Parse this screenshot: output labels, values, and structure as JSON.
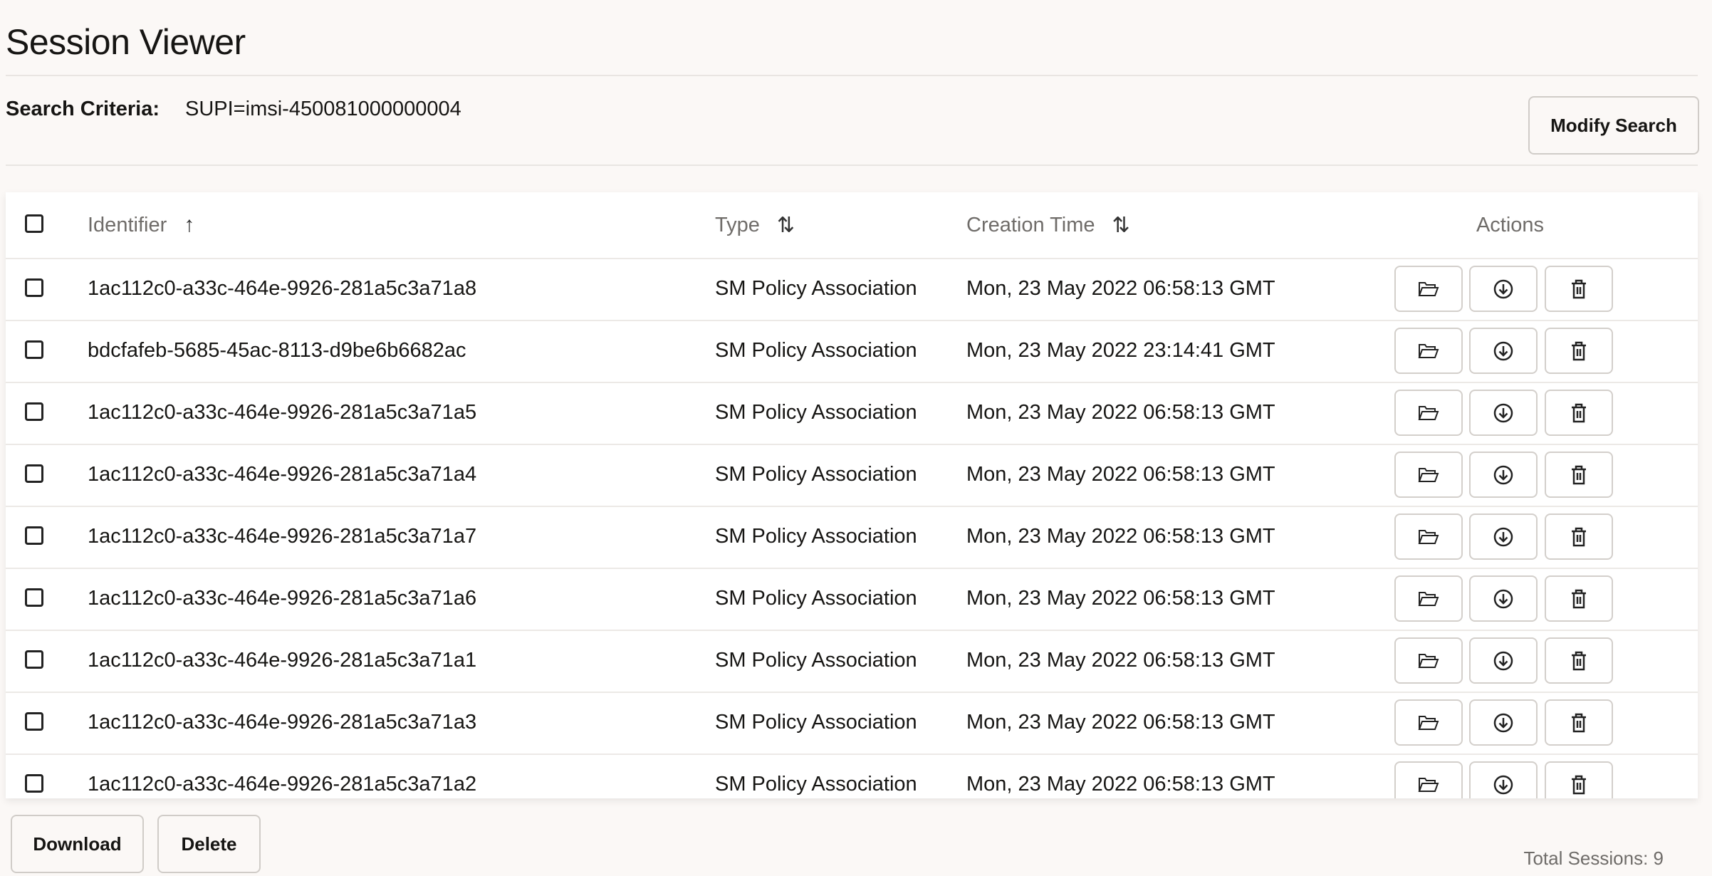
{
  "page": {
    "title": "Session Viewer"
  },
  "search": {
    "label": "Search Criteria:",
    "value": "SUPI=imsi-450081000000004",
    "modify_label": "Modify Search"
  },
  "table": {
    "columns": [
      {
        "label": "Identifier",
        "sort": "ascending",
        "sort_icon": "↑"
      },
      {
        "label": "Type",
        "sort": "unsorted",
        "sort_icon": "⇅"
      },
      {
        "label": "Creation Time",
        "sort": "unsorted",
        "sort_icon": "⇅"
      },
      {
        "label": "Actions"
      }
    ],
    "rows": [
      {
        "id": "1ac112c0-a33c-464e-9926-281a5c3a71a8",
        "type": "SM Policy Association",
        "time": "Mon, 23 May 2022 06:58:13 GMT"
      },
      {
        "id": "bdcfafeb-5685-45ac-8113-d9be6b6682ac",
        "type": "SM Policy Association",
        "time": "Mon, 23 May 2022 23:14:41 GMT"
      },
      {
        "id": "1ac112c0-a33c-464e-9926-281a5c3a71a5",
        "type": "SM Policy Association",
        "time": "Mon, 23 May 2022 06:58:13 GMT"
      },
      {
        "id": "1ac112c0-a33c-464e-9926-281a5c3a71a4",
        "type": "SM Policy Association",
        "time": "Mon, 23 May 2022 06:58:13 GMT"
      },
      {
        "id": "1ac112c0-a33c-464e-9926-281a5c3a71a7",
        "type": "SM Policy Association",
        "time": "Mon, 23 May 2022 06:58:13 GMT"
      },
      {
        "id": "1ac112c0-a33c-464e-9926-281a5c3a71a6",
        "type": "SM Policy Association",
        "time": "Mon, 23 May 2022 06:58:13 GMT"
      },
      {
        "id": "1ac112c0-a33c-464e-9926-281a5c3a71a1",
        "type": "SM Policy Association",
        "time": "Mon, 23 May 2022 06:58:13 GMT"
      },
      {
        "id": "1ac112c0-a33c-464e-9926-281a5c3a71a3",
        "type": "SM Policy Association",
        "time": "Mon, 23 May 2022 06:58:13 GMT"
      },
      {
        "id": "1ac112c0-a33c-464e-9926-281a5c3a71a2",
        "type": "SM Policy Association",
        "time": "Mon, 23 May 2022 06:58:13 GMT"
      }
    ],
    "row_actions": [
      "folder-open-icon",
      "download-icon",
      "trash-icon"
    ]
  },
  "footer": {
    "download_label": "Download",
    "delete_label": "Delete",
    "total": "Total Sessions: 9"
  }
}
